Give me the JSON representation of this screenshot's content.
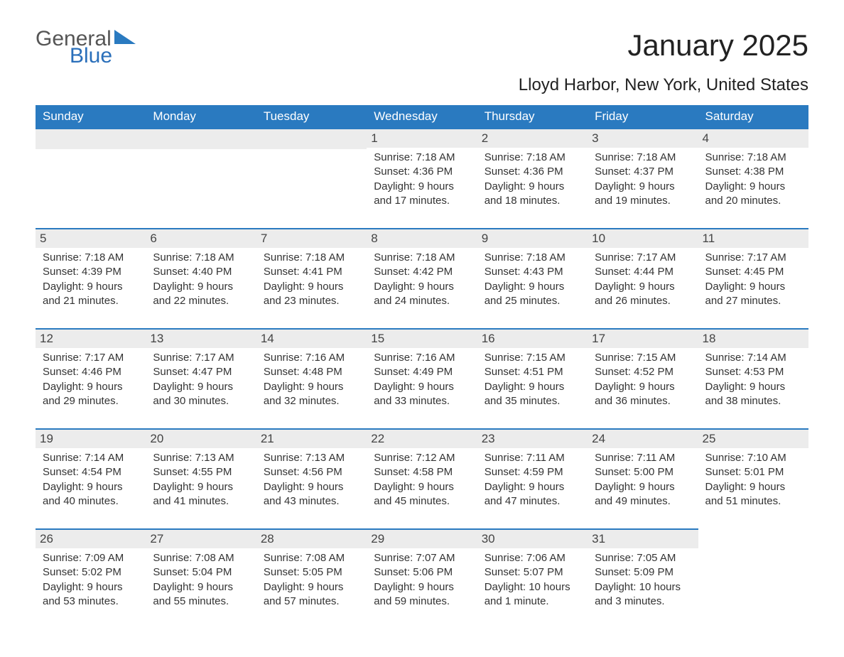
{
  "logo": {
    "text1": "General",
    "text2": "Blue",
    "icon_color": "#2a7ac0"
  },
  "title": "January 2025",
  "location": "Lloyd Harbor, New York, United States",
  "colors": {
    "header_bg": "#2a7ac0",
    "header_text": "#ffffff",
    "daynum_bg": "#ececec",
    "row_border": "#2a7ac0",
    "body_text": "#333333"
  },
  "day_headers": [
    "Sunday",
    "Monday",
    "Tuesday",
    "Wednesday",
    "Thursday",
    "Friday",
    "Saturday"
  ],
  "weeks": [
    [
      {
        "empty": true
      },
      {
        "empty": true
      },
      {
        "empty": true
      },
      {
        "day": "1",
        "sunrise": "Sunrise: 7:18 AM",
        "sunset": "Sunset: 4:36 PM",
        "daylight1": "Daylight: 9 hours",
        "daylight2": "and 17 minutes."
      },
      {
        "day": "2",
        "sunrise": "Sunrise: 7:18 AM",
        "sunset": "Sunset: 4:36 PM",
        "daylight1": "Daylight: 9 hours",
        "daylight2": "and 18 minutes."
      },
      {
        "day": "3",
        "sunrise": "Sunrise: 7:18 AM",
        "sunset": "Sunset: 4:37 PM",
        "daylight1": "Daylight: 9 hours",
        "daylight2": "and 19 minutes."
      },
      {
        "day": "4",
        "sunrise": "Sunrise: 7:18 AM",
        "sunset": "Sunset: 4:38 PM",
        "daylight1": "Daylight: 9 hours",
        "daylight2": "and 20 minutes."
      }
    ],
    [
      {
        "day": "5",
        "sunrise": "Sunrise: 7:18 AM",
        "sunset": "Sunset: 4:39 PM",
        "daylight1": "Daylight: 9 hours",
        "daylight2": "and 21 minutes."
      },
      {
        "day": "6",
        "sunrise": "Sunrise: 7:18 AM",
        "sunset": "Sunset: 4:40 PM",
        "daylight1": "Daylight: 9 hours",
        "daylight2": "and 22 minutes."
      },
      {
        "day": "7",
        "sunrise": "Sunrise: 7:18 AM",
        "sunset": "Sunset: 4:41 PM",
        "daylight1": "Daylight: 9 hours",
        "daylight2": "and 23 minutes."
      },
      {
        "day": "8",
        "sunrise": "Sunrise: 7:18 AM",
        "sunset": "Sunset: 4:42 PM",
        "daylight1": "Daylight: 9 hours",
        "daylight2": "and 24 minutes."
      },
      {
        "day": "9",
        "sunrise": "Sunrise: 7:18 AM",
        "sunset": "Sunset: 4:43 PM",
        "daylight1": "Daylight: 9 hours",
        "daylight2": "and 25 minutes."
      },
      {
        "day": "10",
        "sunrise": "Sunrise: 7:17 AM",
        "sunset": "Sunset: 4:44 PM",
        "daylight1": "Daylight: 9 hours",
        "daylight2": "and 26 minutes."
      },
      {
        "day": "11",
        "sunrise": "Sunrise: 7:17 AM",
        "sunset": "Sunset: 4:45 PM",
        "daylight1": "Daylight: 9 hours",
        "daylight2": "and 27 minutes."
      }
    ],
    [
      {
        "day": "12",
        "sunrise": "Sunrise: 7:17 AM",
        "sunset": "Sunset: 4:46 PM",
        "daylight1": "Daylight: 9 hours",
        "daylight2": "and 29 minutes."
      },
      {
        "day": "13",
        "sunrise": "Sunrise: 7:17 AM",
        "sunset": "Sunset: 4:47 PM",
        "daylight1": "Daylight: 9 hours",
        "daylight2": "and 30 minutes."
      },
      {
        "day": "14",
        "sunrise": "Sunrise: 7:16 AM",
        "sunset": "Sunset: 4:48 PM",
        "daylight1": "Daylight: 9 hours",
        "daylight2": "and 32 minutes."
      },
      {
        "day": "15",
        "sunrise": "Sunrise: 7:16 AM",
        "sunset": "Sunset: 4:49 PM",
        "daylight1": "Daylight: 9 hours",
        "daylight2": "and 33 minutes."
      },
      {
        "day": "16",
        "sunrise": "Sunrise: 7:15 AM",
        "sunset": "Sunset: 4:51 PM",
        "daylight1": "Daylight: 9 hours",
        "daylight2": "and 35 minutes."
      },
      {
        "day": "17",
        "sunrise": "Sunrise: 7:15 AM",
        "sunset": "Sunset: 4:52 PM",
        "daylight1": "Daylight: 9 hours",
        "daylight2": "and 36 minutes."
      },
      {
        "day": "18",
        "sunrise": "Sunrise: 7:14 AM",
        "sunset": "Sunset: 4:53 PM",
        "daylight1": "Daylight: 9 hours",
        "daylight2": "and 38 minutes."
      }
    ],
    [
      {
        "day": "19",
        "sunrise": "Sunrise: 7:14 AM",
        "sunset": "Sunset: 4:54 PM",
        "daylight1": "Daylight: 9 hours",
        "daylight2": "and 40 minutes."
      },
      {
        "day": "20",
        "sunrise": "Sunrise: 7:13 AM",
        "sunset": "Sunset: 4:55 PM",
        "daylight1": "Daylight: 9 hours",
        "daylight2": "and 41 minutes."
      },
      {
        "day": "21",
        "sunrise": "Sunrise: 7:13 AM",
        "sunset": "Sunset: 4:56 PM",
        "daylight1": "Daylight: 9 hours",
        "daylight2": "and 43 minutes."
      },
      {
        "day": "22",
        "sunrise": "Sunrise: 7:12 AM",
        "sunset": "Sunset: 4:58 PM",
        "daylight1": "Daylight: 9 hours",
        "daylight2": "and 45 minutes."
      },
      {
        "day": "23",
        "sunrise": "Sunrise: 7:11 AM",
        "sunset": "Sunset: 4:59 PM",
        "daylight1": "Daylight: 9 hours",
        "daylight2": "and 47 minutes."
      },
      {
        "day": "24",
        "sunrise": "Sunrise: 7:11 AM",
        "sunset": "Sunset: 5:00 PM",
        "daylight1": "Daylight: 9 hours",
        "daylight2": "and 49 minutes."
      },
      {
        "day": "25",
        "sunrise": "Sunrise: 7:10 AM",
        "sunset": "Sunset: 5:01 PM",
        "daylight1": "Daylight: 9 hours",
        "daylight2": "and 51 minutes."
      }
    ],
    [
      {
        "day": "26",
        "sunrise": "Sunrise: 7:09 AM",
        "sunset": "Sunset: 5:02 PM",
        "daylight1": "Daylight: 9 hours",
        "daylight2": "and 53 minutes."
      },
      {
        "day": "27",
        "sunrise": "Sunrise: 7:08 AM",
        "sunset": "Sunset: 5:04 PM",
        "daylight1": "Daylight: 9 hours",
        "daylight2": "and 55 minutes."
      },
      {
        "day": "28",
        "sunrise": "Sunrise: 7:08 AM",
        "sunset": "Sunset: 5:05 PM",
        "daylight1": "Daylight: 9 hours",
        "daylight2": "and 57 minutes."
      },
      {
        "day": "29",
        "sunrise": "Sunrise: 7:07 AM",
        "sunset": "Sunset: 5:06 PM",
        "daylight1": "Daylight: 9 hours",
        "daylight2": "and 59 minutes."
      },
      {
        "day": "30",
        "sunrise": "Sunrise: 7:06 AM",
        "sunset": "Sunset: 5:07 PM",
        "daylight1": "Daylight: 10 hours",
        "daylight2": "and 1 minute."
      },
      {
        "day": "31",
        "sunrise": "Sunrise: 7:05 AM",
        "sunset": "Sunset: 5:09 PM",
        "daylight1": "Daylight: 10 hours",
        "daylight2": "and 3 minutes."
      },
      {
        "empty": true,
        "no_bg": true
      }
    ]
  ]
}
